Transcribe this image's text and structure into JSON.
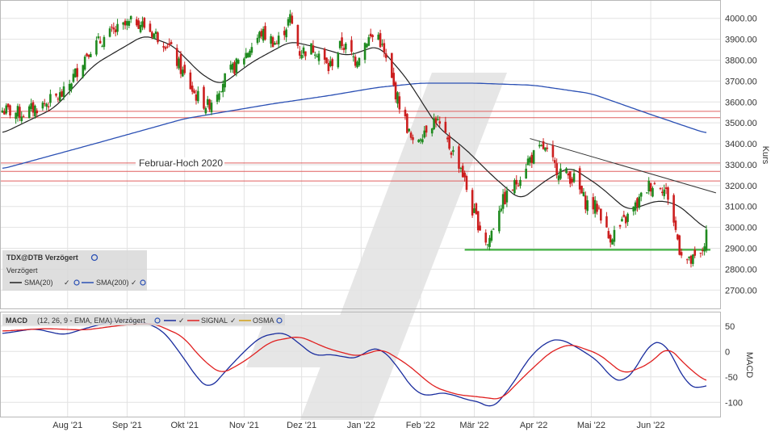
{
  "colors": {
    "bull": "#1f8a1f",
    "bear": "#cc1f1f",
    "sma20": "#222222",
    "sma200": "#2b50b4",
    "macd": "#1a2d9e",
    "signal": "#e02020",
    "osma": "#d4a017",
    "support": "#2ea82e",
    "resistance_lines": "#e06060",
    "trendline": "#333333",
    "grid": "#e2e2e2",
    "watermark": "#e6e6e6"
  },
  "chart_data": [
    {
      "type": "candlestick",
      "title": "TDX@DTB Verzögert",
      "subtitle": "Verzögert",
      "ylabel": "Kurs",
      "ylim": [
        2620,
        4080
      ],
      "y_ticks": [
        2700,
        2800,
        2900,
        3000,
        3100,
        3200,
        3300,
        3400,
        3500,
        3600,
        3700,
        3800,
        3900,
        4000
      ],
      "y_tick_labels": [
        "2700.00",
        "2800.00",
        "2900.00",
        "3000.00",
        "3100.00",
        "3200.00",
        "3300.00",
        "3400.00",
        "3500.00",
        "3600.00",
        "3700.00",
        "3800.00",
        "3900.00",
        "4000.00"
      ],
      "x_range": [
        "2021-06-28",
        "2022-06-30"
      ],
      "x_ticks": [
        {
          "date": "2021-08-01",
          "label": "Aug '21"
        },
        {
          "date": "2021-09-01",
          "label": "Sep '21"
        },
        {
          "date": "2021-10-01",
          "label": "Okt '21"
        },
        {
          "date": "2021-11-01",
          "label": "Nov '21"
        },
        {
          "date": "2021-12-01",
          "label": "Dez '21"
        },
        {
          "date": "2022-01-01",
          "label": "Jan '22"
        },
        {
          "date": "2022-02-01",
          "label": "Feb '22"
        },
        {
          "date": "2022-03-01",
          "label": "Mär '22"
        },
        {
          "date": "2022-04-01",
          "label": "Apr '22"
        },
        {
          "date": "2022-05-01",
          "label": "Mai '22"
        },
        {
          "date": "2022-06-01",
          "label": "Jun '22"
        }
      ],
      "grid": true,
      "legend_position": "bottom-left",
      "legend": [
        {
          "label": "SMA(20)",
          "color_key": "sma20"
        },
        {
          "label": "SMA(200)",
          "color_key": "sma200"
        }
      ],
      "close_anchors": [
        [
          "2021-06-28",
          3560
        ],
        [
          "2021-07-08",
          3545
        ],
        [
          "2021-07-20",
          3590
        ],
        [
          "2021-07-30",
          3640
        ],
        [
          "2021-08-12",
          3850
        ],
        [
          "2021-08-24",
          3930
        ],
        [
          "2021-09-06",
          3990
        ],
        [
          "2021-09-16",
          3920
        ],
        [
          "2021-09-22",
          3880
        ],
        [
          "2021-09-30",
          3740
        ],
        [
          "2021-10-06",
          3640
        ],
        [
          "2021-10-13",
          3580
        ],
        [
          "2021-10-21",
          3700
        ],
        [
          "2021-11-01",
          3820
        ],
        [
          "2021-11-10",
          3930
        ],
        [
          "2021-11-18",
          3880
        ],
        [
          "2021-11-25",
          4000
        ],
        [
          "2021-11-30",
          3840
        ],
        [
          "2021-12-08",
          3860
        ],
        [
          "2021-12-15",
          3760
        ],
        [
          "2021-12-22",
          3880
        ],
        [
          "2021-12-29",
          3800
        ],
        [
          "2022-01-04",
          3900
        ],
        [
          "2022-01-10",
          3920
        ],
        [
          "2022-01-18",
          3670
        ],
        [
          "2022-01-24",
          3510
        ],
        [
          "2022-01-28",
          3390
        ],
        [
          "2022-02-03",
          3470
        ],
        [
          "2022-02-09",
          3520
        ],
        [
          "2022-02-14",
          3420
        ],
        [
          "2022-02-22",
          3290
        ],
        [
          "2022-02-28",
          3080
        ],
        [
          "2022-03-08",
          2920
        ],
        [
          "2022-03-14",
          3100
        ],
        [
          "2022-03-22",
          3200
        ],
        [
          "2022-03-29",
          3320
        ],
        [
          "2022-04-06",
          3380
        ],
        [
          "2022-04-12",
          3290
        ],
        [
          "2022-04-22",
          3230
        ],
        [
          "2022-04-28",
          3120
        ],
        [
          "2022-05-05",
          3090
        ],
        [
          "2022-05-10",
          2950
        ],
        [
          "2022-05-16",
          3000
        ],
        [
          "2022-05-24",
          3100
        ],
        [
          "2022-05-31",
          3200
        ],
        [
          "2022-06-06",
          3210
        ],
        [
          "2022-06-10",
          3150
        ],
        [
          "2022-06-16",
          2900
        ],
        [
          "2022-06-21",
          2830
        ],
        [
          "2022-06-27",
          2860
        ],
        [
          "2022-06-30",
          2960
        ]
      ],
      "sma20": [
        [
          "2021-06-28",
          3450
        ],
        [
          "2021-07-25",
          3570
        ],
        [
          "2021-08-15",
          3780
        ],
        [
          "2021-09-10",
          3920
        ],
        [
          "2021-09-25",
          3870
        ],
        [
          "2021-10-10",
          3730
        ],
        [
          "2021-10-20",
          3680
        ],
        [
          "2021-11-05",
          3790
        ],
        [
          "2021-11-25",
          3890
        ],
        [
          "2021-12-10",
          3860
        ],
        [
          "2021-12-25",
          3820
        ],
        [
          "2022-01-10",
          3870
        ],
        [
          "2022-01-25",
          3710
        ],
        [
          "2022-02-10",
          3480
        ],
        [
          "2022-02-25",
          3370
        ],
        [
          "2022-03-10",
          3250
        ],
        [
          "2022-03-25",
          3130
        ],
        [
          "2022-04-08",
          3230
        ],
        [
          "2022-04-20",
          3290
        ],
        [
          "2022-05-05",
          3200
        ],
        [
          "2022-05-20",
          3080
        ],
        [
          "2022-06-05",
          3130
        ],
        [
          "2022-06-15",
          3110
        ],
        [
          "2022-06-30",
          2990
        ]
      ],
      "sma200": [
        [
          "2021-06-28",
          3280
        ],
        [
          "2021-08-15",
          3400
        ],
        [
          "2021-10-01",
          3520
        ],
        [
          "2021-11-15",
          3590
        ],
        [
          "2021-12-15",
          3630
        ],
        [
          "2022-01-10",
          3670
        ],
        [
          "2022-02-01",
          3690
        ],
        [
          "2022-03-01",
          3690
        ],
        [
          "2022-04-01",
          3680
        ],
        [
          "2022-05-01",
          3640
        ],
        [
          "2022-06-01",
          3540
        ],
        [
          "2022-06-30",
          3450
        ]
      ],
      "horizontal_lines": [
        {
          "value": 3555,
          "color_key": "resistance_lines"
        },
        {
          "value": 3525,
          "color_key": "resistance_lines"
        },
        {
          "value": 3308,
          "color_key": "resistance_lines"
        },
        {
          "value": 3268,
          "color_key": "resistance_lines"
        },
        {
          "value": 3222,
          "color_key": "resistance_lines"
        },
        {
          "value": 2893,
          "color_key": "support",
          "from": "2022-02-24"
        }
      ],
      "trendline": {
        "from": [
          "2022-03-30",
          3425
        ],
        "to": [
          "2022-07-05",
          3165
        ]
      },
      "annotations": [
        {
          "text": "Februar-Hoch 2020",
          "date": "2021-09-29",
          "value": 3308
        }
      ]
    },
    {
      "type": "line",
      "title": "MACD",
      "parameters": "(12, 26, 9 - EMA, EMA) Verzögert",
      "ylabel": "MACD",
      "ylim": [
        -125,
        75
      ],
      "y_ticks": [
        50,
        0,
        -50,
        -100
      ],
      "legend": [
        {
          "label": "SIGNAL",
          "color_key": "signal"
        },
        {
          "label": "OSMA",
          "color_key": "osma"
        }
      ],
      "macd": [
        [
          "2021-06-28",
          35
        ],
        [
          "2021-07-15",
          45
        ],
        [
          "2021-07-30",
          32
        ],
        [
          "2021-08-10",
          45
        ],
        [
          "2021-08-25",
          60
        ],
        [
          "2021-09-10",
          58
        ],
        [
          "2021-09-20",
          40
        ],
        [
          "2021-09-30",
          -10
        ],
        [
          "2021-10-08",
          -55
        ],
        [
          "2021-10-14",
          -75
        ],
        [
          "2021-10-22",
          -40
        ],
        [
          "2021-11-01",
          0
        ],
        [
          "2021-11-10",
          30
        ],
        [
          "2021-11-22",
          38
        ],
        [
          "2021-11-30",
          15
        ],
        [
          "2021-12-08",
          -10
        ],
        [
          "2021-12-15",
          -5
        ],
        [
          "2021-12-22",
          -10
        ],
        [
          "2021-12-30",
          -15
        ],
        [
          "2022-01-05",
          5
        ],
        [
          "2022-01-12",
          5
        ],
        [
          "2022-01-20",
          -30
        ],
        [
          "2022-01-28",
          -75
        ],
        [
          "2022-02-05",
          -90
        ],
        [
          "2022-02-10",
          -80
        ],
        [
          "2022-02-18",
          -85
        ],
        [
          "2022-02-25",
          -95
        ],
        [
          "2022-03-05",
          -100
        ],
        [
          "2022-03-10",
          -115
        ],
        [
          "2022-03-20",
          -70
        ],
        [
          "2022-03-30",
          -10
        ],
        [
          "2022-04-08",
          20
        ],
        [
          "2022-04-15",
          25
        ],
        [
          "2022-04-25",
          5
        ],
        [
          "2022-05-05",
          -20
        ],
        [
          "2022-05-12",
          -55
        ],
        [
          "2022-05-18",
          -60
        ],
        [
          "2022-05-25",
          -30
        ],
        [
          "2022-05-31",
          15
        ],
        [
          "2022-06-08",
          20
        ],
        [
          "2022-06-15",
          -30
        ],
        [
          "2022-06-20",
          -65
        ],
        [
          "2022-06-26",
          -75
        ],
        [
          "2022-06-30",
          -65
        ]
      ],
      "signal": [
        [
          "2021-06-28",
          40
        ],
        [
          "2021-07-20",
          45
        ],
        [
          "2021-08-10",
          42
        ],
        [
          "2021-08-30",
          52
        ],
        [
          "2021-09-15",
          55
        ],
        [
          "2021-09-30",
          30
        ],
        [
          "2021-10-10",
          -15
        ],
        [
          "2021-10-20",
          -45
        ],
        [
          "2021-11-01",
          -20
        ],
        [
          "2021-11-15",
          20
        ],
        [
          "2021-11-30",
          30
        ],
        [
          "2021-12-15",
          5
        ],
        [
          "2021-12-30",
          -10
        ],
        [
          "2022-01-12",
          5
        ],
        [
          "2022-01-25",
          -25
        ],
        [
          "2022-02-08",
          -70
        ],
        [
          "2022-02-20",
          -85
        ],
        [
          "2022-03-05",
          -90
        ],
        [
          "2022-03-15",
          -95
        ],
        [
          "2022-03-28",
          -45
        ],
        [
          "2022-04-10",
          0
        ],
        [
          "2022-04-20",
          15
        ],
        [
          "2022-05-05",
          -5
        ],
        [
          "2022-05-18",
          -45
        ],
        [
          "2022-05-31",
          -25
        ],
        [
          "2022-06-10",
          10
        ],
        [
          "2022-06-20",
          -30
        ],
        [
          "2022-06-30",
          -60
        ]
      ]
    }
  ]
}
